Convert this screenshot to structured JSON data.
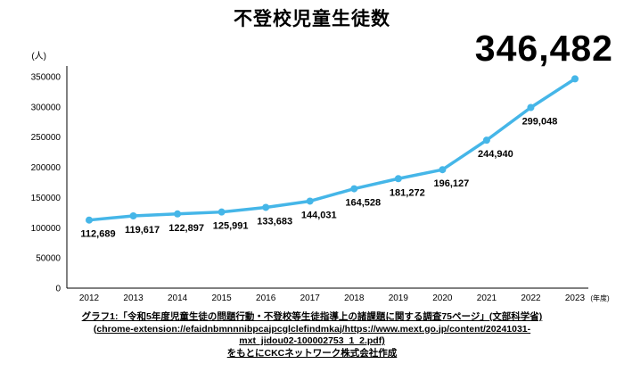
{
  "title": "不登校児童生徒数",
  "highlight_value": "346,482",
  "chart_data": {
    "type": "line",
    "title": "不登校児童生徒数",
    "unit_label": "(人)",
    "x_suffix_label": "(年度)",
    "categories": [
      "2012",
      "2013",
      "2014",
      "2015",
      "2016",
      "2017",
      "2018",
      "2019",
      "2020",
      "2021",
      "2022",
      "2023"
    ],
    "values": [
      112689,
      119617,
      122897,
      125991,
      133683,
      144031,
      164528,
      181272,
      196127,
      244940,
      299048,
      346482
    ],
    "ylim": [
      0,
      350000
    ],
    "ytick_step": 50000,
    "line_color": "#45b6e8",
    "grid": false,
    "legend": "none"
  },
  "caption": {
    "lines": [
      "グラフ1:「令和5年度児童生徒の問題行動・不登校等生徒指導上の諸課題に関する調査75ページ」(文部科学省)",
      "(chrome-extension://efaidnbmnnnibpcajpcglclefindmkaj/https://www.mext.go.jp/content/20241031-",
      "mxt_jidou02-100002753_1_2.pdf)",
      "をもとにCKCネットワーク株式会社作成"
    ]
  }
}
